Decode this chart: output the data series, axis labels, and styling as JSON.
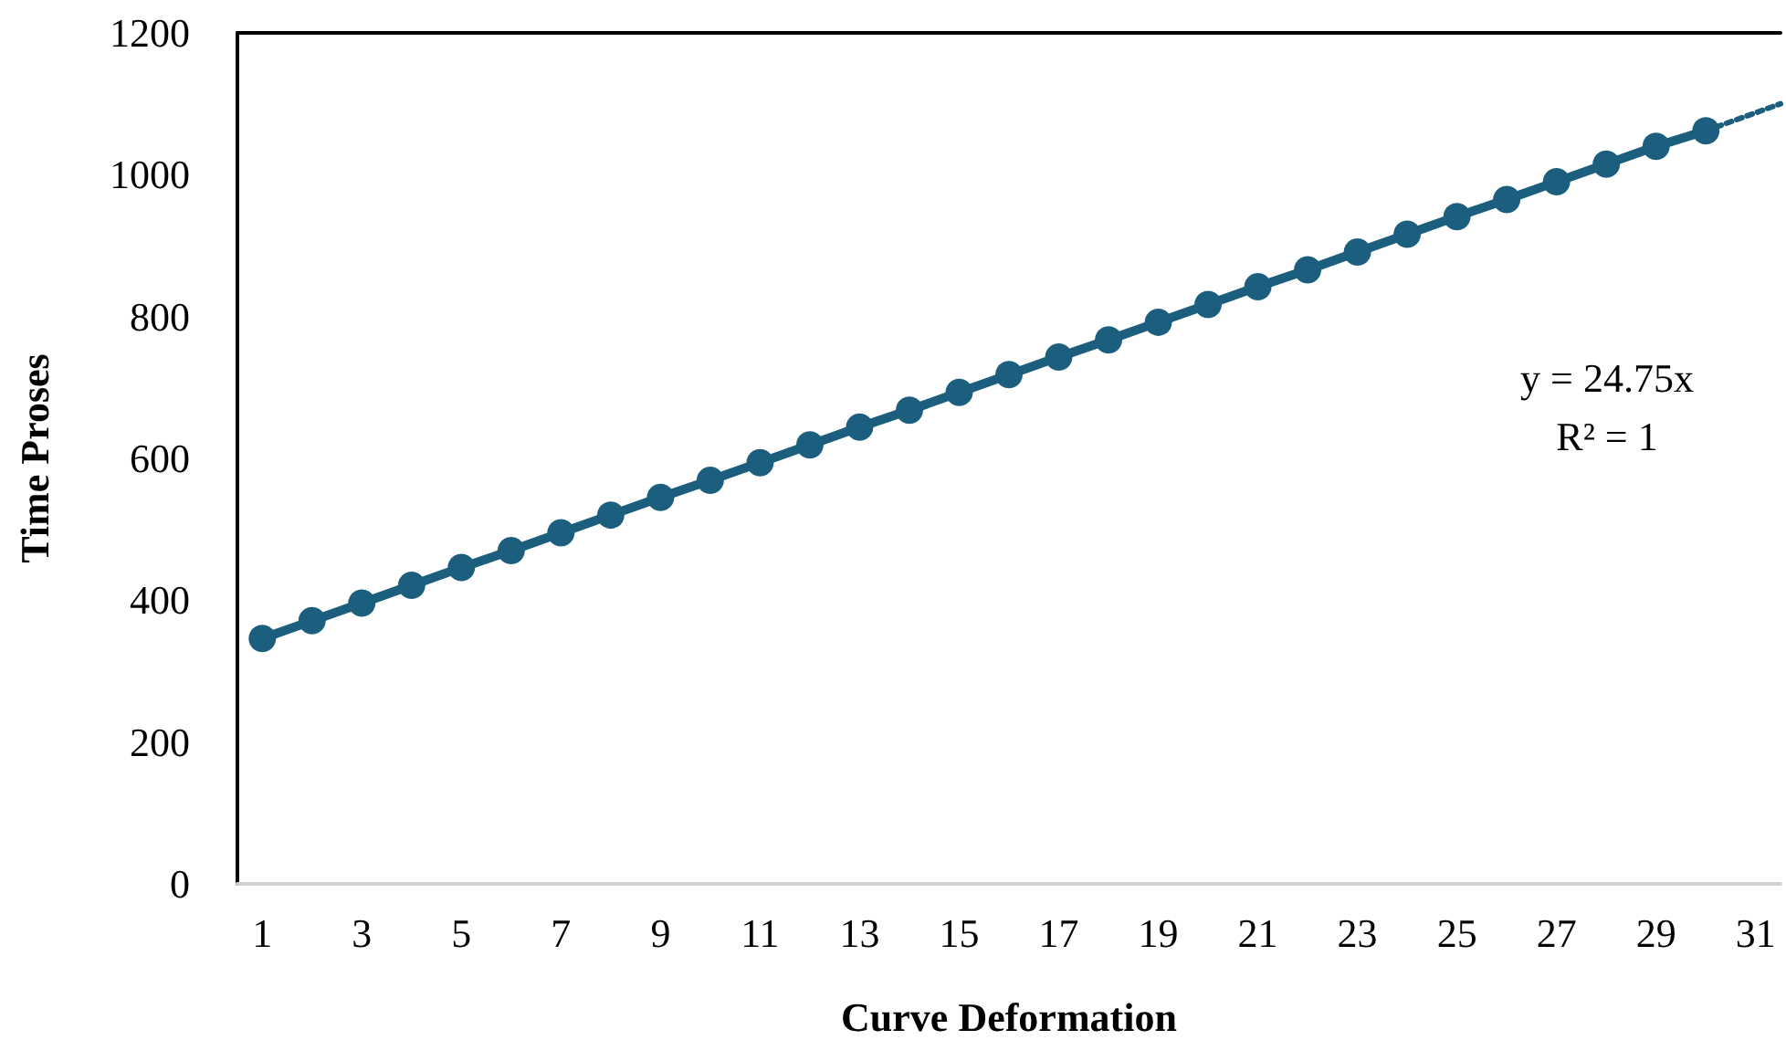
{
  "chart_data": {
    "type": "line",
    "xlabel": "Curve Deformation",
    "ylabel": "Time Proses",
    "xlim": [
      0.5,
      31.5
    ],
    "xticks": [
      1,
      3,
      5,
      7,
      9,
      11,
      13,
      15,
      17,
      19,
      21,
      23,
      25,
      27,
      29,
      31
    ],
    "ylim": [
      0,
      1200
    ],
    "yticks": [
      0,
      200,
      400,
      600,
      800,
      1000,
      1200
    ],
    "grid": false,
    "marker": "circle",
    "line_style": "solid",
    "annotations": [
      "y = 24.75x",
      "R² = 1"
    ],
    "series": [
      {
        "color": "#1b5e7e",
        "x": [
          1,
          2,
          3,
          4,
          5,
          6,
          7,
          8,
          9,
          10,
          11,
          12,
          13,
          14,
          15,
          16,
          17,
          18,
          19,
          20,
          21,
          22,
          23,
          24,
          25,
          26,
          27,
          28,
          29,
          30
        ],
        "values": [
          346,
          371,
          396,
          421,
          446,
          470,
          495,
          520,
          545,
          569,
          594,
          619,
          644,
          668,
          693,
          718,
          743,
          767,
          792,
          817,
          842,
          866,
          891,
          916,
          941,
          965,
          990,
          1015,
          1040,
          1062
        ]
      },
      {
        "type": "line",
        "color": "#1b5e7e",
        "line_style": "dotted",
        "marker": "none",
        "x": [
          30,
          31.5
        ],
        "values": [
          1062,
          1100
        ]
      }
    ]
  }
}
